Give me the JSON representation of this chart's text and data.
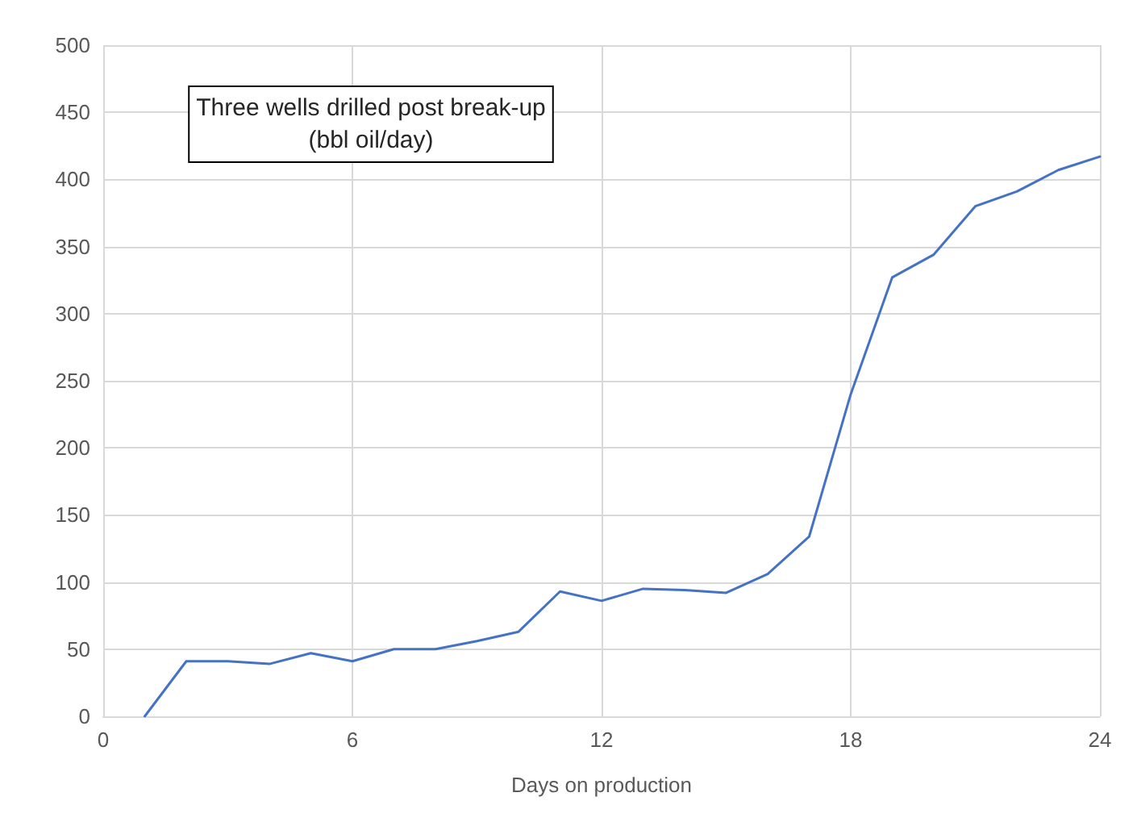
{
  "chart_data": {
    "type": "line",
    "title": "Three wells drilled post break-up\n(bbl oil/day)",
    "xlabel": "Days on production",
    "x": [
      1,
      2,
      3,
      4,
      5,
      6,
      7,
      8,
      9,
      10,
      11,
      12,
      13,
      14,
      15,
      16,
      17,
      18,
      19,
      20,
      21,
      22,
      23,
      24
    ],
    "series": [
      {
        "color": "#4472c4",
        "values": [
          0,
          41,
          41,
          39,
          47,
          41,
          50,
          50,
          56,
          63,
          93,
          86,
          95,
          94,
          92,
          106,
          134,
          240,
          327,
          344,
          380,
          391,
          407,
          417
        ]
      }
    ],
    "xlim": [
      0,
      24
    ],
    "xticks": [
      0,
      6,
      12,
      18,
      24
    ],
    "ylim": [
      0,
      500
    ],
    "yticks": [
      0,
      50,
      100,
      150,
      200,
      250,
      300,
      350,
      400,
      450,
      500
    ],
    "grid": true,
    "marker": "none",
    "line_style": "solid"
  }
}
